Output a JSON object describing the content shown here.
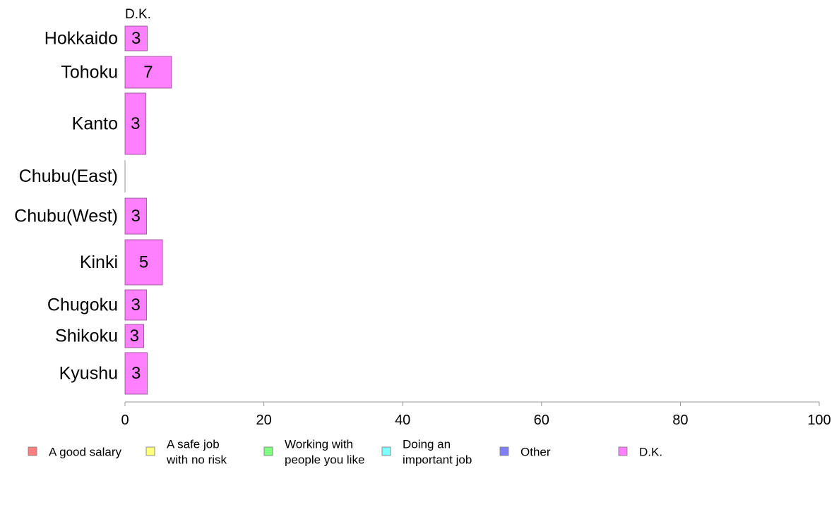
{
  "chart_data": {
    "type": "bar",
    "orientation": "horizontal",
    "stacked": true,
    "series_title": "D.K.",
    "categories": [
      "Hokkaido",
      "Tohoku",
      "Kanto",
      "Chubu(East)",
      "Chubu(West)",
      "Kinki",
      "Chugoku",
      "Shikoku",
      "Kyushu"
    ],
    "series": [
      {
        "name": "D.K.",
        "color": "#ff80ff",
        "values": [
          3.2,
          6.7,
          3.0,
          0,
          3.1,
          5.4,
          3.1,
          2.7,
          3.2
        ],
        "labels": [
          "3",
          "7",
          "3",
          "",
          "3",
          "5",
          "3",
          "3",
          "3"
        ]
      }
    ],
    "xlim": [
      0,
      100
    ],
    "xticks": [
      "0",
      "20",
      "40",
      "60",
      "80",
      "100"
    ],
    "grid": false,
    "legend_position": "bottom",
    "legend": [
      {
        "lines": [
          "A good salary"
        ],
        "color": "#ff8080"
      },
      {
        "lines": [
          "A safe job",
          "with no risk"
        ],
        "color": "#ffff80"
      },
      {
        "lines": [
          "Working with",
          "people you like"
        ],
        "color": "#80ff80"
      },
      {
        "lines": [
          "Doing an",
          "important job"
        ],
        "color": "#80ffff"
      },
      {
        "lines": [
          "Other"
        ],
        "color": "#8080ff"
      },
      {
        "lines": [
          "D.K."
        ],
        "color": "#ff80ff"
      }
    ]
  }
}
